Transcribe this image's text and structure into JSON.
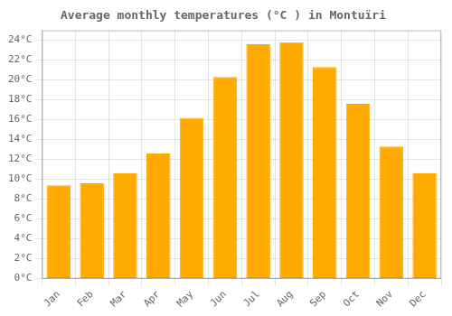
{
  "chart_data": {
    "type": "bar",
    "title": "Average monthly temperatures (°C ) in Montuïri",
    "categories": [
      "Jan",
      "Feb",
      "Mar",
      "Apr",
      "May",
      "Jun",
      "Jul",
      "Aug",
      "Sep",
      "Oct",
      "Nov",
      "Dec"
    ],
    "values": [
      9.4,
      9.6,
      10.6,
      12.6,
      16.2,
      20.3,
      23.6,
      23.8,
      21.3,
      17.6,
      13.3,
      10.6
    ],
    "color": "#FFAA00",
    "ylim": [
      0,
      25
    ],
    "yticks": [
      {
        "value": 0,
        "label": "0°C"
      },
      {
        "value": 2,
        "label": "2°C"
      },
      {
        "value": 4,
        "label": "4°C"
      },
      {
        "value": 6,
        "label": "6°C"
      },
      {
        "value": 8,
        "label": "8°C"
      },
      {
        "value": 10,
        "label": "10°C"
      },
      {
        "value": 12,
        "label": "12°C"
      },
      {
        "value": 14,
        "label": "14°C"
      },
      {
        "value": 16,
        "label": "16°C"
      },
      {
        "value": 18,
        "label": "18°C"
      },
      {
        "value": 20,
        "label": "20°C"
      },
      {
        "value": 22,
        "label": "22°C"
      },
      {
        "value": 24,
        "label": "24°C"
      }
    ],
    "grid": true
  }
}
